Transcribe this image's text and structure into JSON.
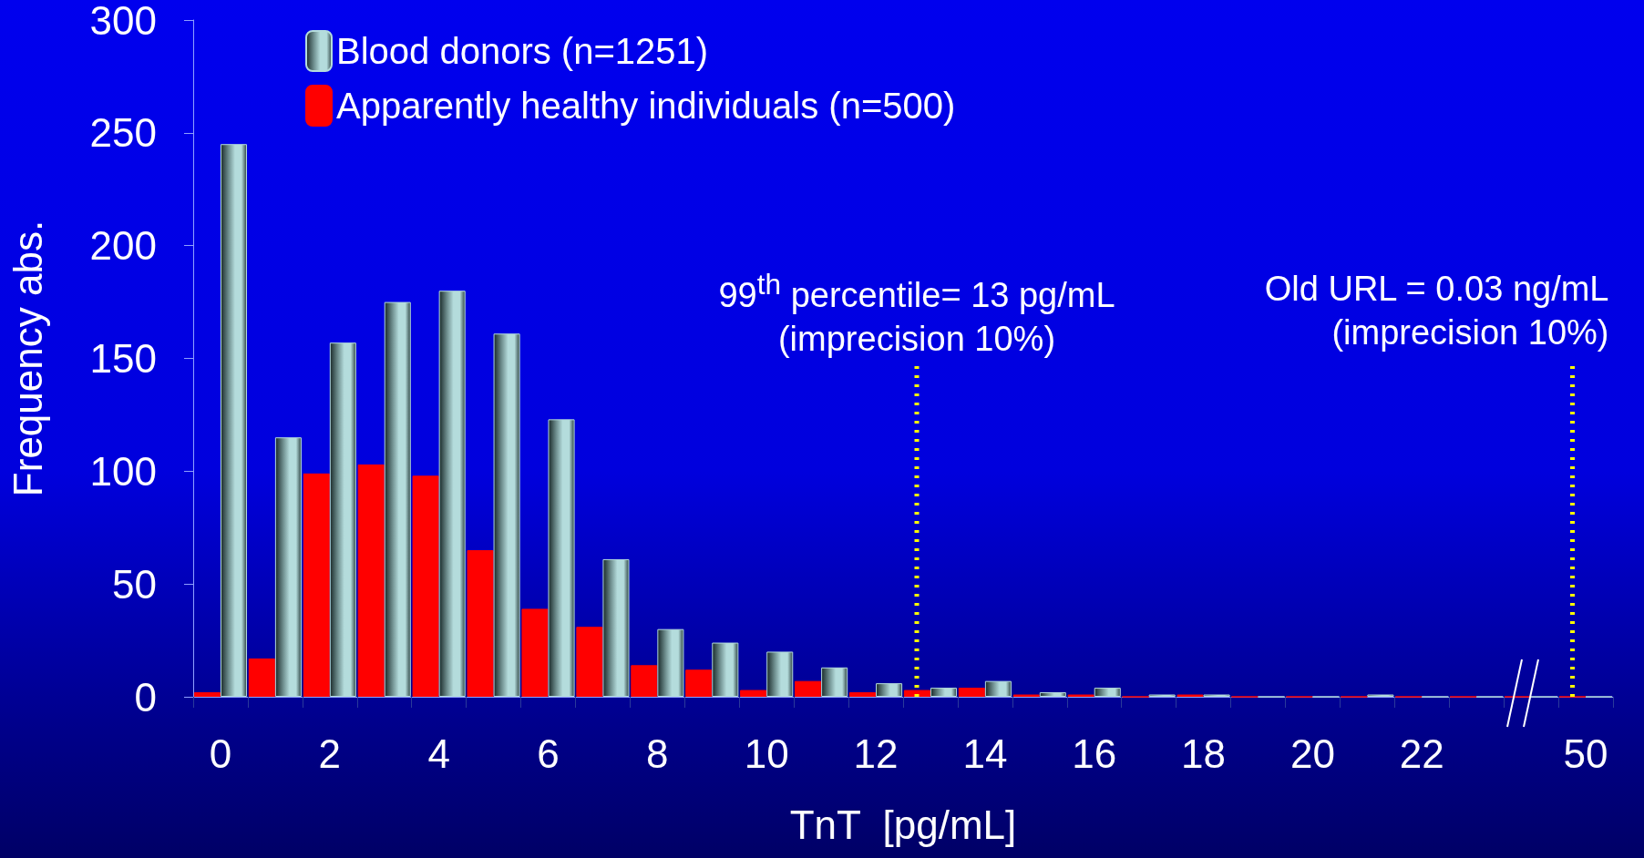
{
  "chart_data": {
    "type": "bar",
    "xlabel": "TnT  [pg/mL]",
    "ylabel": "Frequency abs.",
    "categories": [
      "0",
      null,
      "2",
      null,
      "4",
      null,
      "6",
      null,
      "8",
      null,
      "10",
      null,
      "12",
      null,
      "14",
      null,
      "16",
      null,
      "18",
      null,
      "20",
      null,
      "22",
      null,
      null,
      "50"
    ],
    "series": [
      {
        "name": "Apparently healthy individuals (n=500)",
        "color": "#ff0000",
        "values": [
          2,
          17,
          99,
          103,
          98,
          65,
          39,
          31,
          14,
          12,
          3,
          7,
          2,
          3,
          4,
          1,
          1,
          0,
          1,
          0,
          0,
          0,
          0,
          0,
          0,
          0
        ]
      },
      {
        "name": "Blood donors (n=1251)",
        "color": "#b4dcdc",
        "values": [
          245,
          115,
          157,
          175,
          180,
          161,
          123,
          61,
          30,
          24,
          20,
          13,
          6,
          4,
          7,
          2,
          4,
          1,
          1,
          0,
          0,
          1,
          0,
          0,
          0,
          0
        ]
      }
    ],
    "ylim": [
      0,
      300
    ],
    "yticks": [
      0,
      50,
      100,
      150,
      200,
      250,
      300
    ],
    "grid": false,
    "legend": "top left",
    "annotations": [
      {
        "text": "99$^{th}$ percentile= 13 pg/mL\n(imprecision 10%)",
        "y": 0
      }
    ],
    "ref_lines": [
      {
        "axis": "x",
        "value": "50",
        "label": "Old URL = 0.03 ng/mL\n(imprecision 10%)",
        "color": "#ffff00",
        "line_style": "dotted"
      }
    ]
  }
}
